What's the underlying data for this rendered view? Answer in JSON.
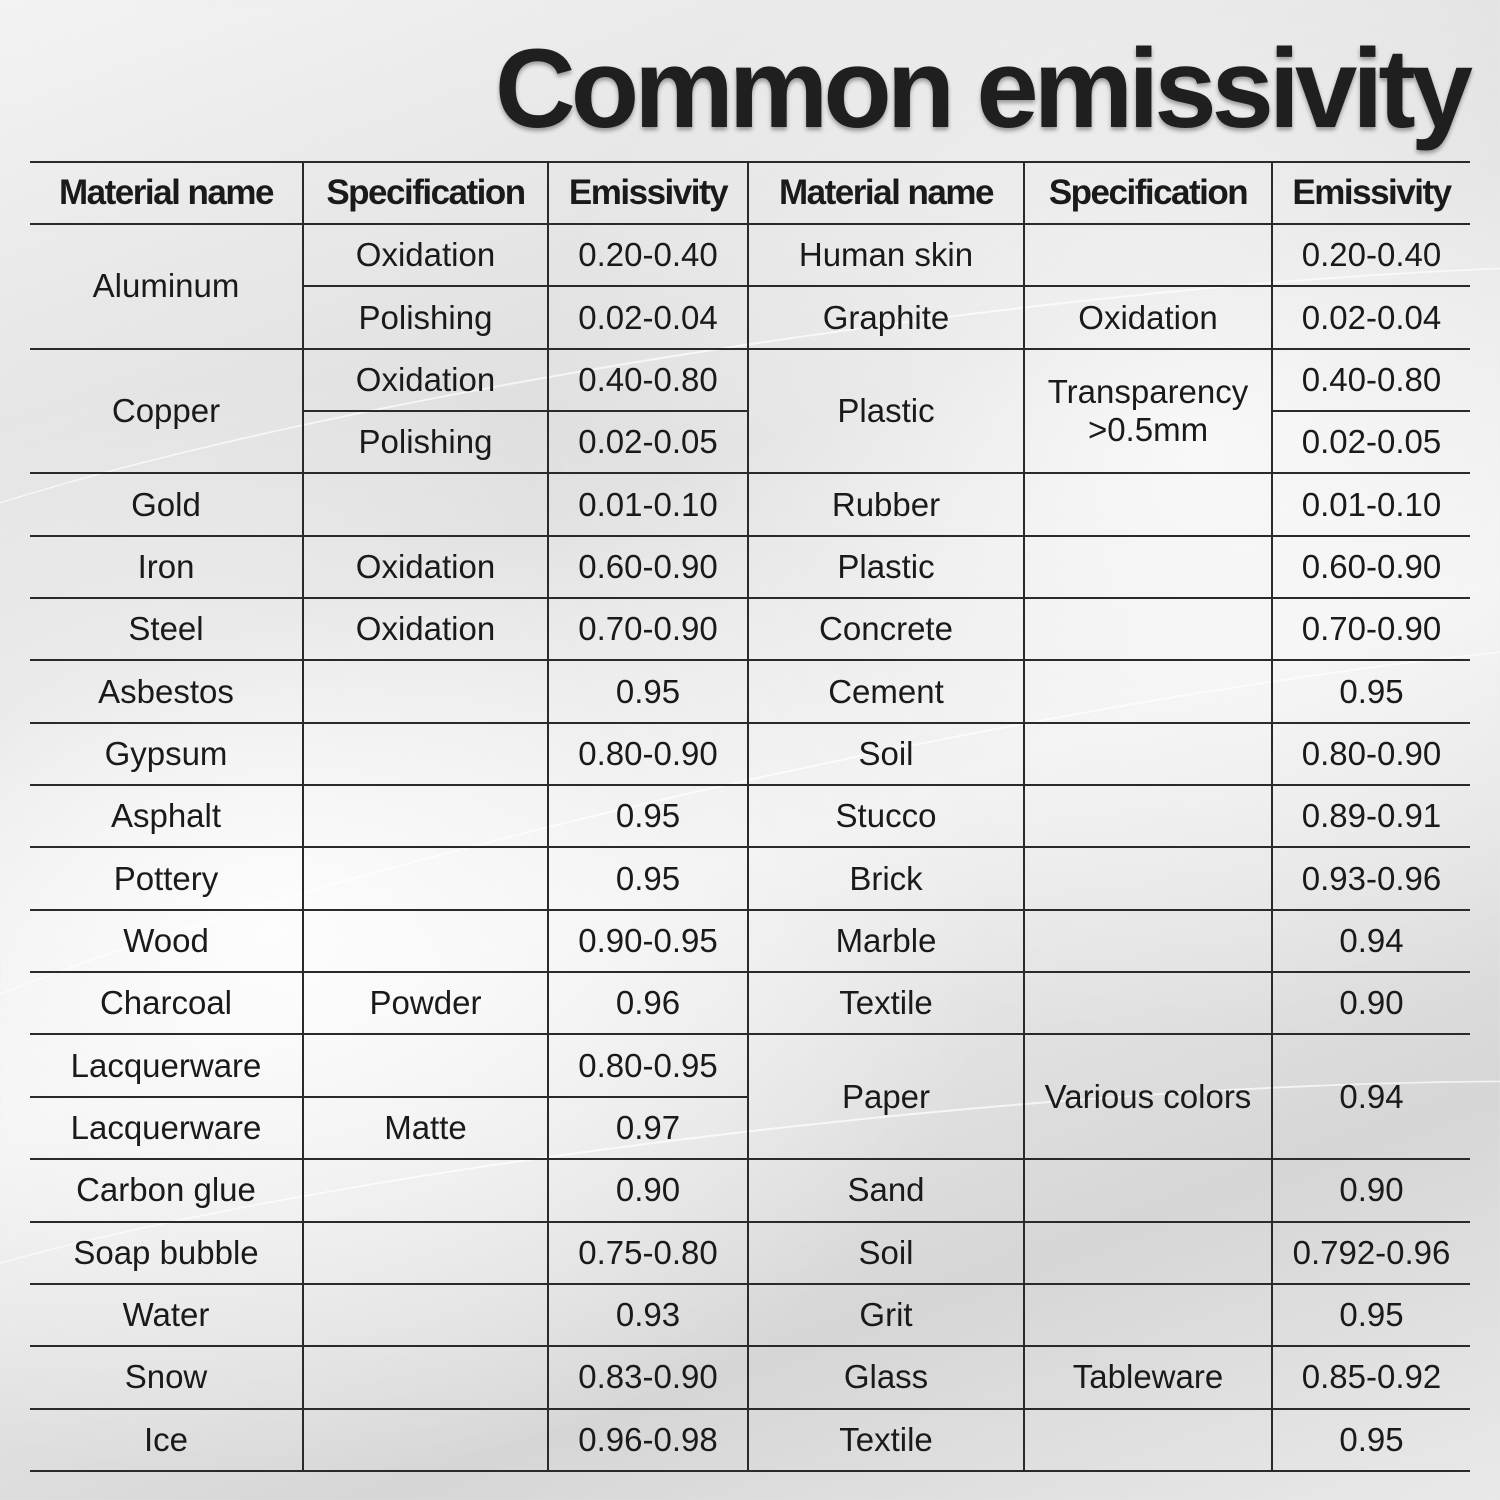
{
  "title": "Common emissivity",
  "columns": [
    "Material name",
    "Specification",
    "Emissivity",
    "Material name",
    "Specification",
    "Emissivity"
  ],
  "left": {
    "aluminum": {
      "name": "Aluminum",
      "specs": [
        "Oxidation",
        "Polishing"
      ],
      "values": [
        "0.20-0.40",
        "0.02-0.04"
      ]
    },
    "copper": {
      "name": "Copper",
      "specs": [
        "Oxidation",
        "Polishing"
      ],
      "values": [
        "0.40-0.80",
        "0.02-0.05"
      ]
    },
    "rows": [
      {
        "name": "Gold",
        "spec": "",
        "value": "0.01-0.10"
      },
      {
        "name": "Iron",
        "spec": "Oxidation",
        "value": "0.60-0.90"
      },
      {
        "name": "Steel",
        "spec": "Oxidation",
        "value": "0.70-0.90"
      },
      {
        "name": "Asbestos",
        "spec": "",
        "value": "0.95"
      },
      {
        "name": "Gypsum",
        "spec": "",
        "value": "0.80-0.90"
      },
      {
        "name": "Asphalt",
        "spec": "",
        "value": "0.95"
      },
      {
        "name": "Pottery",
        "spec": "",
        "value": "0.95"
      },
      {
        "name": "Wood",
        "spec": "",
        "value": "0.90-0.95"
      },
      {
        "name": "Charcoal",
        "spec": "Powder",
        "value": "0.96"
      },
      {
        "name": "Lacquerware",
        "spec": "",
        "value": "0.80-0.95"
      },
      {
        "name": "Lacquerware",
        "spec": "Matte",
        "value": "0.97"
      },
      {
        "name": "Carbon glue",
        "spec": "",
        "value": "0.90"
      },
      {
        "name": "Soap bubble",
        "spec": "",
        "value": "0.75-0.80"
      },
      {
        "name": "Water",
        "spec": "",
        "value": "0.93"
      },
      {
        "name": "Snow",
        "spec": "",
        "value": "0.83-0.90"
      },
      {
        "name": "Ice",
        "spec": "",
        "value": "0.96-0.98"
      }
    ]
  },
  "right": {
    "rows": [
      {
        "name": "Human skin",
        "spec": "",
        "value": "0.20-0.40"
      },
      {
        "name": "Graphite",
        "spec": "Oxidation",
        "value": "0.02-0.04"
      },
      {
        "name": "Rubber",
        "spec": "",
        "value": "0.01-0.10"
      },
      {
        "name": "Plastic",
        "spec": "",
        "value": "0.60-0.90"
      },
      {
        "name": "Concrete",
        "spec": "",
        "value": "0.70-0.90"
      },
      {
        "name": "Cement",
        "spec": "",
        "value": "0.95"
      },
      {
        "name": "Soil",
        "spec": "",
        "value": "0.80-0.90"
      },
      {
        "name": "Stucco",
        "spec": "",
        "value": "0.89-0.91"
      },
      {
        "name": "Brick",
        "spec": "",
        "value": "0.93-0.96"
      },
      {
        "name": "Marble",
        "spec": "",
        "value": "0.94"
      },
      {
        "name": "Textile",
        "spec": "",
        "value": "0.90"
      },
      {
        "name": "Sand",
        "spec": "",
        "value": "0.90"
      },
      {
        "name": "Soil",
        "spec": "",
        "value": "0.792-0.96"
      },
      {
        "name": "Grit",
        "spec": "",
        "value": "0.95"
      },
      {
        "name": "Glass",
        "spec": "Tableware",
        "value": "0.85-0.92"
      },
      {
        "name": "Textile",
        "spec": "",
        "value": "0.95"
      }
    ],
    "plastic": {
      "name": "Plastic",
      "spec": "Transparency >0.5mm",
      "values": [
        "0.40-0.80",
        "0.02-0.05"
      ]
    },
    "paper": {
      "name": "Paper",
      "spec": "Various colors",
      "value": "0.94"
    }
  }
}
